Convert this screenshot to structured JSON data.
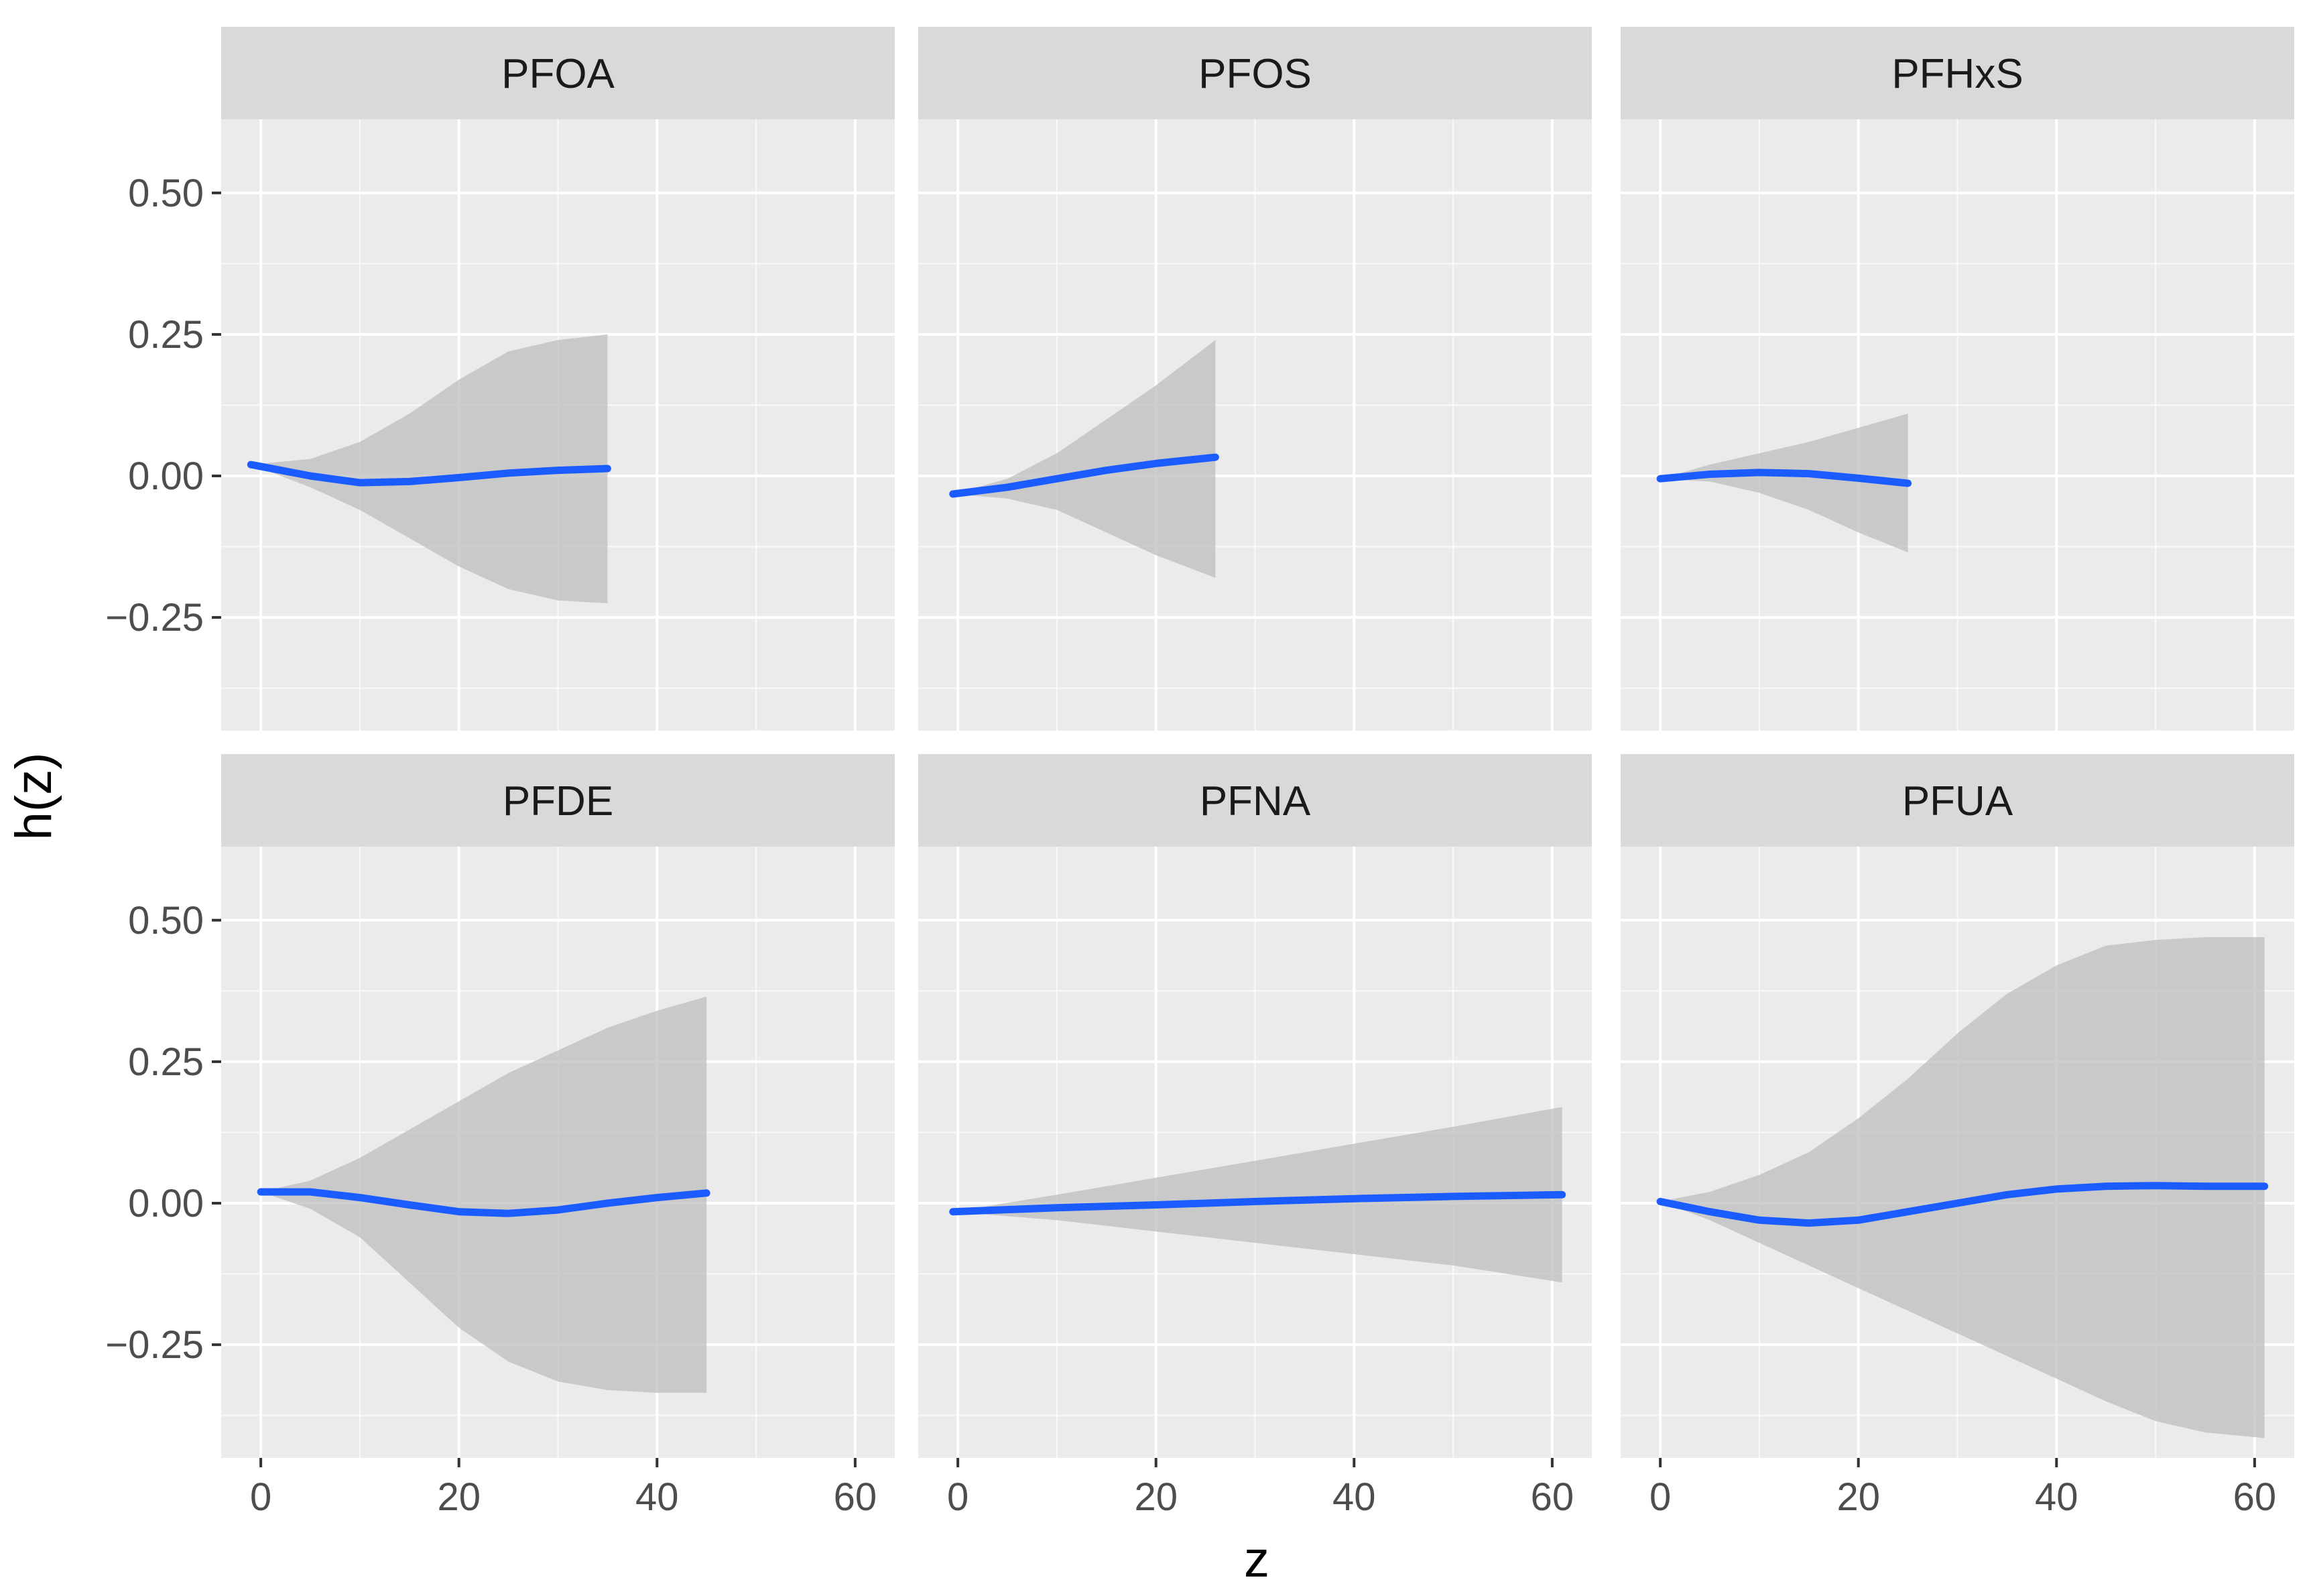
{
  "chart_data": {
    "type": "line",
    "layout": "facet-grid",
    "xlabel": "z",
    "ylabel": "h(z)",
    "xlim": [
      -4,
      64
    ],
    "ylim": [
      -0.45,
      0.63
    ],
    "x_ticks": [
      0,
      20,
      40,
      60
    ],
    "y_ticks": [
      0.5,
      0.25,
      0.0,
      -0.25
    ],
    "x_tick_labels": [
      "0",
      "20",
      "40",
      "60"
    ],
    "y_tick_labels": [
      "0.50",
      "0.25",
      "0.00",
      "−0.25"
    ],
    "colors": {
      "line": "#1a5cff",
      "ribbon": "#bdbdbd",
      "panel_background": "#ebebeb",
      "grid": "#ffffff",
      "strip_background": "#d9d9d9"
    },
    "panels": [
      {
        "title": "PFOA",
        "x": [
          -1,
          5,
          10,
          15,
          20,
          25,
          30,
          35
        ],
        "y": [
          0.02,
          0.0,
          -0.012,
          -0.01,
          -0.003,
          0.005,
          0.01,
          0.013
        ],
        "lower": [
          0.02,
          -0.02,
          -0.06,
          -0.11,
          -0.16,
          -0.2,
          -0.22,
          -0.225
        ],
        "upper": [
          0.02,
          0.03,
          0.06,
          0.11,
          0.17,
          0.22,
          0.24,
          0.25
        ]
      },
      {
        "title": "PFOS",
        "x": [
          -0.5,
          5,
          10,
          15,
          20,
          26
        ],
        "y": [
          -0.032,
          -0.02,
          -0.005,
          0.01,
          0.022,
          0.033
        ],
        "lower": [
          -0.032,
          -0.04,
          -0.06,
          -0.1,
          -0.14,
          -0.18
        ],
        "upper": [
          -0.032,
          -0.005,
          0.04,
          0.1,
          0.16,
          0.24
        ]
      },
      {
        "title": "PFHxS",
        "x": [
          0,
          5,
          10,
          15,
          20,
          25
        ],
        "y": [
          -0.005,
          0.003,
          0.006,
          0.004,
          -0.004,
          -0.013
        ],
        "lower": [
          -0.005,
          -0.01,
          -0.03,
          -0.06,
          -0.1,
          -0.135
        ],
        "upper": [
          -0.005,
          0.02,
          0.04,
          0.06,
          0.085,
          0.11
        ]
      },
      {
        "title": "PFDE",
        "x": [
          0,
          5,
          10,
          15,
          20,
          25,
          30,
          35,
          40,
          45
        ],
        "y": [
          0.02,
          0.02,
          0.01,
          -0.003,
          -0.015,
          -0.018,
          -0.012,
          0.0,
          0.01,
          0.018
        ],
        "lower": [
          0.02,
          -0.01,
          -0.06,
          -0.14,
          -0.22,
          -0.28,
          -0.315,
          -0.33,
          -0.335,
          -0.335
        ],
        "upper": [
          0.02,
          0.04,
          0.08,
          0.13,
          0.18,
          0.23,
          0.27,
          0.31,
          0.34,
          0.365
        ]
      },
      {
        "title": "PFNA",
        "x": [
          -0.5,
          10,
          20,
          30,
          40,
          50,
          61
        ],
        "y": [
          -0.015,
          -0.008,
          -0.003,
          0.003,
          0.008,
          0.012,
          0.015
        ],
        "lower": [
          -0.015,
          -0.03,
          -0.05,
          -0.07,
          -0.09,
          -0.11,
          -0.14
        ],
        "upper": [
          -0.015,
          0.015,
          0.045,
          0.075,
          0.105,
          0.135,
          0.17
        ]
      },
      {
        "title": "PFUA",
        "x": [
          0,
          5,
          10,
          15,
          20,
          25,
          30,
          35,
          40,
          45,
          50,
          55,
          61
        ],
        "y": [
          0.003,
          -0.015,
          -0.03,
          -0.035,
          -0.03,
          -0.015,
          0.0,
          0.015,
          0.025,
          0.03,
          0.031,
          0.03,
          0.03
        ],
        "lower": [
          0.003,
          -0.03,
          -0.07,
          -0.11,
          -0.15,
          -0.19,
          -0.23,
          -0.27,
          -0.31,
          -0.35,
          -0.385,
          -0.405,
          -0.415
        ],
        "upper": [
          0.003,
          0.02,
          0.05,
          0.09,
          0.15,
          0.22,
          0.3,
          0.37,
          0.42,
          0.455,
          0.465,
          0.47,
          0.47
        ]
      }
    ]
  }
}
